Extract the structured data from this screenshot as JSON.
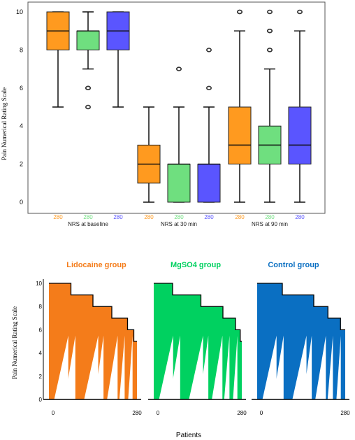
{
  "chart_data": [
    {
      "type": "box",
      "ylabel": "Pain Numerical Rating Scale",
      "ylim": [
        0,
        10
      ],
      "yticks": [
        0,
        2,
        4,
        6,
        8,
        10
      ],
      "grid": false,
      "groups": [
        {
          "label": "NRS at baseline",
          "boxes": [
            {
              "n": "280",
              "color": "#ff9a1f",
              "min": 5,
              "q1": 8,
              "median": 9,
              "q3": 10,
              "max": 10,
              "outliers": []
            },
            {
              "n": "280",
              "color": "#6fdf7f",
              "min": 7,
              "q1": 8,
              "median": 9,
              "q3": 9,
              "max": 10,
              "outliers": [
                6,
                6,
                5
              ]
            },
            {
              "n": "280",
              "color": "#5a55ff",
              "min": 5,
              "q1": 8,
              "median": 9,
              "q3": 10,
              "max": 10,
              "outliers": []
            }
          ]
        },
        {
          "label": "NRS at 30 min",
          "boxes": [
            {
              "n": "280",
              "color": "#ff9a1f",
              "min": 0,
              "q1": 1,
              "median": 2,
              "q3": 3,
              "max": 5,
              "outliers": []
            },
            {
              "n": "280",
              "color": "#6fdf7f",
              "min": 0,
              "q1": 0,
              "median": 2,
              "q3": 2,
              "max": 5,
              "outliers": [
                7
              ]
            },
            {
              "n": "280",
              "color": "#5a55ff",
              "min": 0,
              "q1": 0,
              "median": 2,
              "q3": 2,
              "max": 5,
              "outliers": [
                8,
                6
              ]
            }
          ]
        },
        {
          "label": "NRS at 90 min",
          "boxes": [
            {
              "n": "280",
              "color": "#ff9a1f",
              "min": 0,
              "q1": 2,
              "median": 3,
              "q3": 5,
              "max": 9,
              "outliers": [
                10,
                10
              ]
            },
            {
              "n": "280",
              "color": "#6fdf7f",
              "min": 0,
              "q1": 2,
              "median": 3,
              "q3": 4,
              "max": 7,
              "outliers": [
                10,
                9,
                9,
                8,
                8
              ]
            },
            {
              "n": "280",
              "color": "#5a55ff",
              "min": 0,
              "q1": 2,
              "median": 3,
              "q3": 5,
              "max": 9,
              "outliers": [
                10
              ]
            }
          ]
        }
      ]
    },
    {
      "type": "area",
      "ylabel": "Pain Numerical Rating Scale",
      "xlabel": "Patients",
      "ylim": [
        0,
        10
      ],
      "yticks": [
        0,
        2,
        4,
        6,
        8,
        10
      ],
      "xticks": [
        "0",
        "280"
      ],
      "panels": [
        {
          "title": "Lidocaine group",
          "color": "#f47c1a",
          "envelope": [
            [
              0,
              10
            ],
            [
              70,
              10
            ],
            [
              70,
              9
            ],
            [
              140,
              9
            ],
            [
              140,
              8
            ],
            [
              200,
              8
            ],
            [
              200,
              7
            ],
            [
              250,
              7
            ],
            [
              250,
              6
            ],
            [
              270,
              6
            ],
            [
              270,
              5
            ],
            [
              280,
              5
            ]
          ]
        },
        {
          "title": "MgSO4 group",
          "color": "#00d160",
          "envelope": [
            [
              0,
              10
            ],
            [
              60,
              10
            ],
            [
              60,
              9
            ],
            [
              150,
              9
            ],
            [
              150,
              8
            ],
            [
              220,
              8
            ],
            [
              220,
              7
            ],
            [
              260,
              7
            ],
            [
              260,
              6
            ],
            [
              275,
              6
            ],
            [
              275,
              5
            ],
            [
              280,
              5
            ]
          ]
        },
        {
          "title": "Control group",
          "color": "#0a6fc2",
          "envelope": [
            [
              0,
              10
            ],
            [
              80,
              10
            ],
            [
              80,
              9
            ],
            [
              180,
              9
            ],
            [
              180,
              8
            ],
            [
              225,
              8
            ],
            [
              225,
              7
            ],
            [
              265,
              7
            ],
            [
              265,
              6
            ],
            [
              280,
              6
            ]
          ]
        }
      ]
    }
  ]
}
